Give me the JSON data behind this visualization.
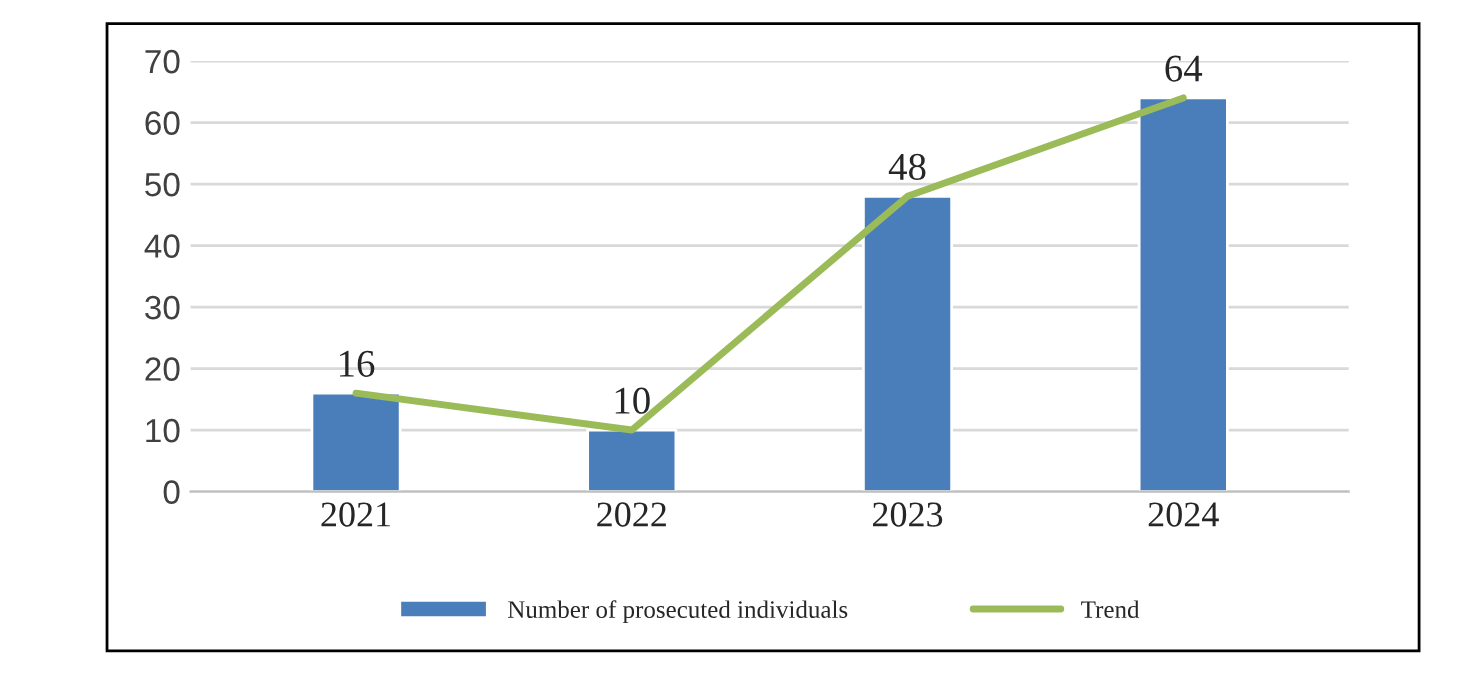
{
  "chart_data": {
    "type": "bar",
    "categories": [
      "2021",
      "2022",
      "2023",
      "2024"
    ],
    "series": [
      {
        "name": "Number of prosecuted individuals",
        "color": "#4a7ebb",
        "values": [
          16,
          10,
          48,
          64
        ],
        "value_labels": [
          "16",
          "10",
          "48",
          "64"
        ]
      },
      {
        "name": "Trend",
        "type": "line",
        "color": "#9bbb59",
        "values": [
          16,
          10,
          48,
          64
        ]
      }
    ],
    "ylim": [
      0,
      70
    ],
    "yticks": [
      0,
      10,
      20,
      30,
      40,
      50,
      60,
      70
    ],
    "grid": "y",
    "legend": "bottom",
    "marker": "none",
    "line_style": "solid"
  }
}
